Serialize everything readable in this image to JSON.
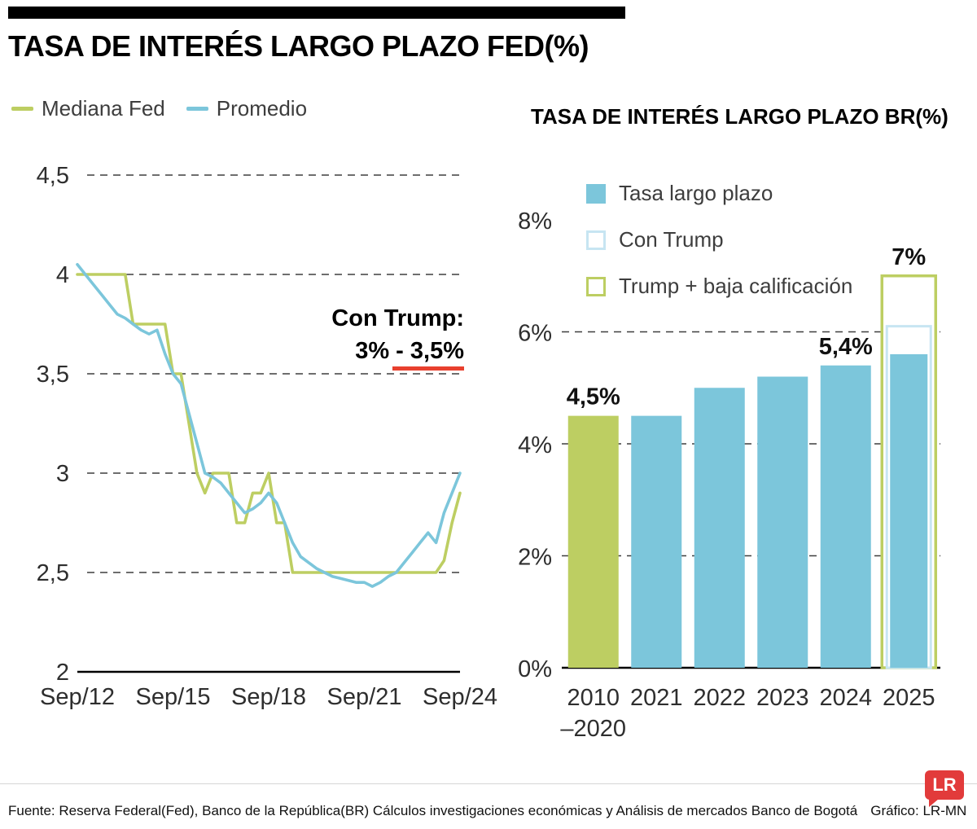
{
  "page": {
    "title": "TASA DE INTERÉS LARGO PLAZO FED(%)",
    "footer": {
      "source": "Fuente: Reserva Federal(Fed), Banco de la República(BR) Cálculos investigaciones económicas y Análisis de mercados Banco de Bogotá",
      "credit": "Gráfico: LR-MN",
      "logo": "LR"
    }
  },
  "colors": {
    "green": "#bdce62",
    "blue": "#7cc6db",
    "light_blue": "#c7e5f2",
    "red": "#e8402e",
    "logo_red": "#e23b3b",
    "grid": "#3f3f3f"
  },
  "chart_data": [
    {
      "type": "line",
      "title": "TASA DE INTERÉS LARGO PLAZO FED(%)",
      "x_tick_labels": [
        "Sep/12",
        "Sep/15",
        "Sep/18",
        "Sep/21",
        "Sep/24"
      ],
      "y_ticks": [
        2,
        2.5,
        3,
        3.5,
        4,
        4.5
      ],
      "y_tick_labels": [
        "2",
        "2,5",
        "3",
        "3,5",
        "4",
        "4,5"
      ],
      "ylim": [
        2,
        4.5
      ],
      "grid": "dashed-horizontal",
      "legend_position": "top-left",
      "series": [
        {
          "name": "Mediana Fed",
          "color": "#bdce62",
          "values": [
            4.0,
            4.0,
            4.0,
            4.0,
            4.0,
            4.0,
            4.0,
            3.75,
            3.75,
            3.75,
            3.75,
            3.75,
            3.5,
            3.5,
            3.25,
            3.0,
            2.9,
            3.0,
            3.0,
            3.0,
            2.75,
            2.75,
            2.9,
            2.9,
            3.0,
            2.75,
            2.75,
            2.5,
            2.5,
            2.5,
            2.5,
            2.5,
            2.5,
            2.5,
            2.5,
            2.5,
            2.5,
            2.5,
            2.5,
            2.5,
            2.5,
            2.5,
            2.5,
            2.5,
            2.5,
            2.5,
            2.56,
            2.75,
            2.9
          ]
        },
        {
          "name": "Promedio",
          "color": "#7cc6db",
          "values": [
            4.05,
            4.0,
            3.95,
            3.9,
            3.85,
            3.8,
            3.78,
            3.75,
            3.72,
            3.7,
            3.72,
            3.6,
            3.5,
            3.45,
            3.3,
            3.15,
            3.0,
            2.98,
            2.95,
            2.9,
            2.85,
            2.8,
            2.82,
            2.85,
            2.9,
            2.85,
            2.75,
            2.65,
            2.58,
            2.55,
            2.52,
            2.5,
            2.48,
            2.47,
            2.46,
            2.45,
            2.45,
            2.43,
            2.45,
            2.48,
            2.5,
            2.55,
            2.6,
            2.65,
            2.7,
            2.65,
            2.8,
            2.9,
            3.0
          ]
        }
      ],
      "annotation": {
        "line1": "Con Trump:",
        "line2": "3% - 3,5%",
        "underline_color": "#e8402e"
      }
    },
    {
      "type": "bar",
      "title": "TASA DE INTERÉS LARGO PLAZO BR(%)",
      "ylim": [
        0,
        8
      ],
      "y_ticks": [
        {
          "value": 0,
          "label": "0%",
          "grid": "solid"
        },
        {
          "value": 2,
          "label": "2%",
          "grid": "dash"
        },
        {
          "value": 4,
          "label": "4%",
          "grid": "dash"
        },
        {
          "value": 6,
          "label": "6%",
          "grid": "dash"
        },
        {
          "value": 8,
          "label": "8%",
          "grid": "none"
        }
      ],
      "legend": [
        {
          "label": "Tasa largo plazo",
          "style": "solid-blue"
        },
        {
          "label": "Con Trump",
          "style": "outline-light-blue"
        },
        {
          "label": "Trump + baja calificación",
          "style": "outline-green"
        }
      ],
      "bars": [
        {
          "label_lines": [
            "2010",
            "–2020"
          ],
          "value": 4.5,
          "color_key": "green",
          "value_label": "4,5%"
        },
        {
          "label_lines": [
            "2021"
          ],
          "value": 4.5,
          "color_key": "blue"
        },
        {
          "label_lines": [
            "2022"
          ],
          "value": 5.0,
          "color_key": "blue"
        },
        {
          "label_lines": [
            "2023"
          ],
          "value": 5.2,
          "color_key": "blue"
        },
        {
          "label_lines": [
            "2024"
          ],
          "value": 5.4,
          "color_key": "blue",
          "value_label": "5,4%"
        },
        {
          "label_lines": [
            "2025"
          ],
          "value": 5.6,
          "color_key": "blue",
          "con_trump": 6.1,
          "trump_baja": 7.0,
          "value_label": "7%"
        }
      ]
    }
  ]
}
